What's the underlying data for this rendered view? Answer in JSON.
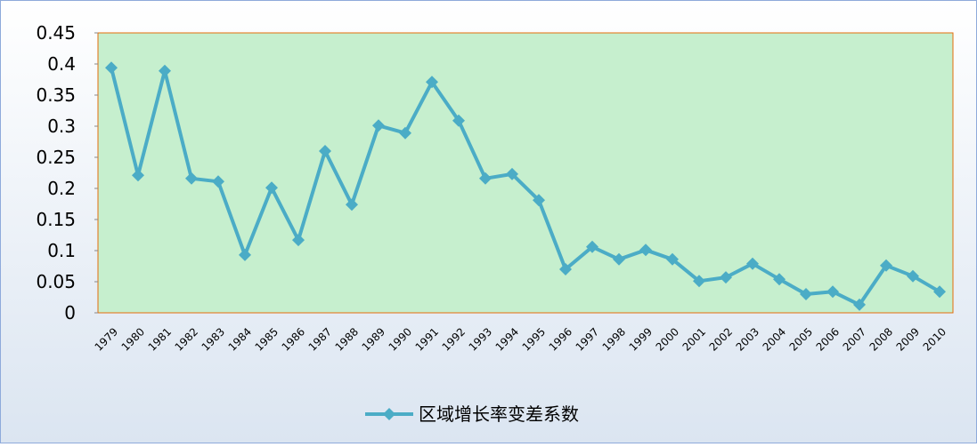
{
  "chart_data": {
    "type": "line",
    "categories": [
      "1979",
      "1980",
      "1981",
      "1982",
      "1983",
      "1984",
      "1985",
      "1986",
      "1987",
      "1988",
      "1989",
      "1990",
      "1991",
      "1992",
      "1993",
      "1994",
      "1995",
      "1996",
      "1997",
      "1998",
      "1999",
      "2000",
      "2001",
      "2002",
      "2003",
      "2004",
      "2005",
      "2006",
      "2007",
      "2008",
      "2009",
      "2010"
    ],
    "series": [
      {
        "name": "区域增长率变差系数",
        "color": "#4bacc6",
        "values": [
          0.394,
          0.221,
          0.389,
          0.216,
          0.211,
          0.093,
          0.201,
          0.117,
          0.26,
          0.174,
          0.301,
          0.289,
          0.371,
          0.309,
          0.216,
          0.223,
          0.181,
          0.07,
          0.106,
          0.086,
          0.101,
          0.086,
          0.051,
          0.057,
          0.079,
          0.054,
          0.03,
          0.034,
          0.013,
          0.076,
          0.059,
          0.034
        ]
      }
    ],
    "ylim": [
      0,
      0.45
    ],
    "yticks": [
      0,
      0.05,
      0.1,
      0.15,
      0.2,
      0.25,
      0.3,
      0.35,
      0.4,
      0.45
    ],
    "plot_background": "#c6efce",
    "legend": "bottom"
  }
}
